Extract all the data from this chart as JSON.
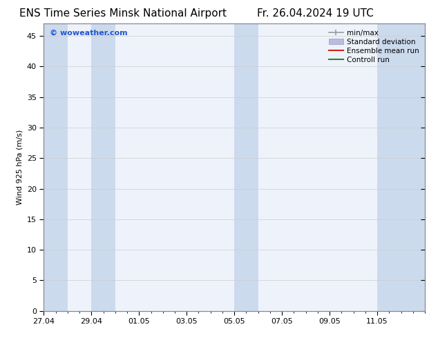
{
  "title": "ENS Time Series Minsk National Airport",
  "title_right": "Fr. 26.04.2024 19 UTC",
  "ylabel": "Wind 925 hPa (m/s)",
  "watermark": "© woweather.com",
  "xlim_left": 0,
  "xlim_right": 16,
  "ylim_bottom": 0,
  "ylim_top": 47,
  "yticks": [
    0,
    5,
    10,
    15,
    20,
    25,
    30,
    35,
    40,
    45
  ],
  "xtick_labels": [
    "27.04",
    "29.04",
    "01.05",
    "03.05",
    "05.05",
    "07.05",
    "09.05",
    "11.05"
  ],
  "xtick_positions": [
    0,
    2,
    4,
    6,
    8,
    10,
    12,
    14
  ],
  "bg_color": "#ffffff",
  "plot_bg_color": "#eef3fb",
  "shaded_bands": [
    {
      "xmin": 0,
      "xmax": 1,
      "color": "#ccdaee"
    },
    {
      "xmin": 2,
      "xmax": 3,
      "color": "#ccdaee"
    },
    {
      "xmin": 8,
      "xmax": 9,
      "color": "#ccdaee"
    },
    {
      "xmin": 14,
      "xmax": 16,
      "color": "#ccdaee"
    }
  ],
  "legend_items": [
    {
      "label": "min/max",
      "color": "#999999",
      "style": "minmax"
    },
    {
      "label": "Standard deviation",
      "color": "#bbbbdd",
      "style": "stddev"
    },
    {
      "label": "Ensemble mean run",
      "color": "#cc2222",
      "style": "line"
    },
    {
      "label": "Controll run",
      "color": "#228833",
      "style": "line"
    }
  ],
  "title_fontsize": 11,
  "axis_fontsize": 8,
  "watermark_fontsize": 8,
  "watermark_color": "#2255cc",
  "legend_fontsize": 7.5
}
